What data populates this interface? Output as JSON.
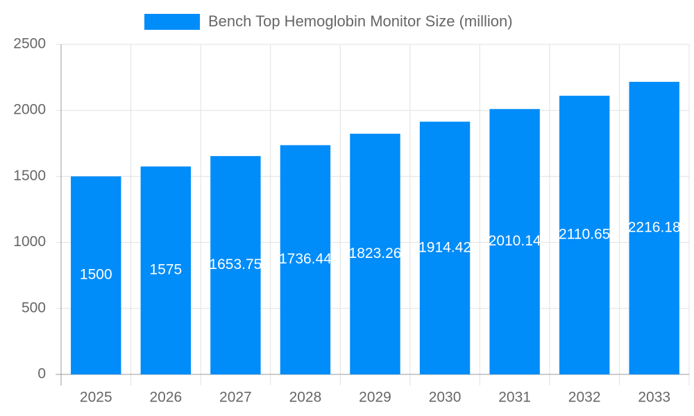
{
  "chart_data": {
    "type": "bar",
    "categories": [
      "2025",
      "2026",
      "2027",
      "2028",
      "2029",
      "2030",
      "2031",
      "2032",
      "2033"
    ],
    "series": [
      {
        "name": "Bench Top Hemoglobin Monitor Size (million)",
        "color": "#008cf9",
        "values": [
          1500,
          1575,
          1653.75,
          1736.44,
          1823.26,
          1914.42,
          2010.14,
          2110.65,
          2216.18
        ]
      }
    ],
    "ylim": [
      0,
      2500
    ],
    "yticks": [
      0,
      500,
      1000,
      1500,
      2000,
      2500
    ],
    "grid": true,
    "legend": "top"
  }
}
